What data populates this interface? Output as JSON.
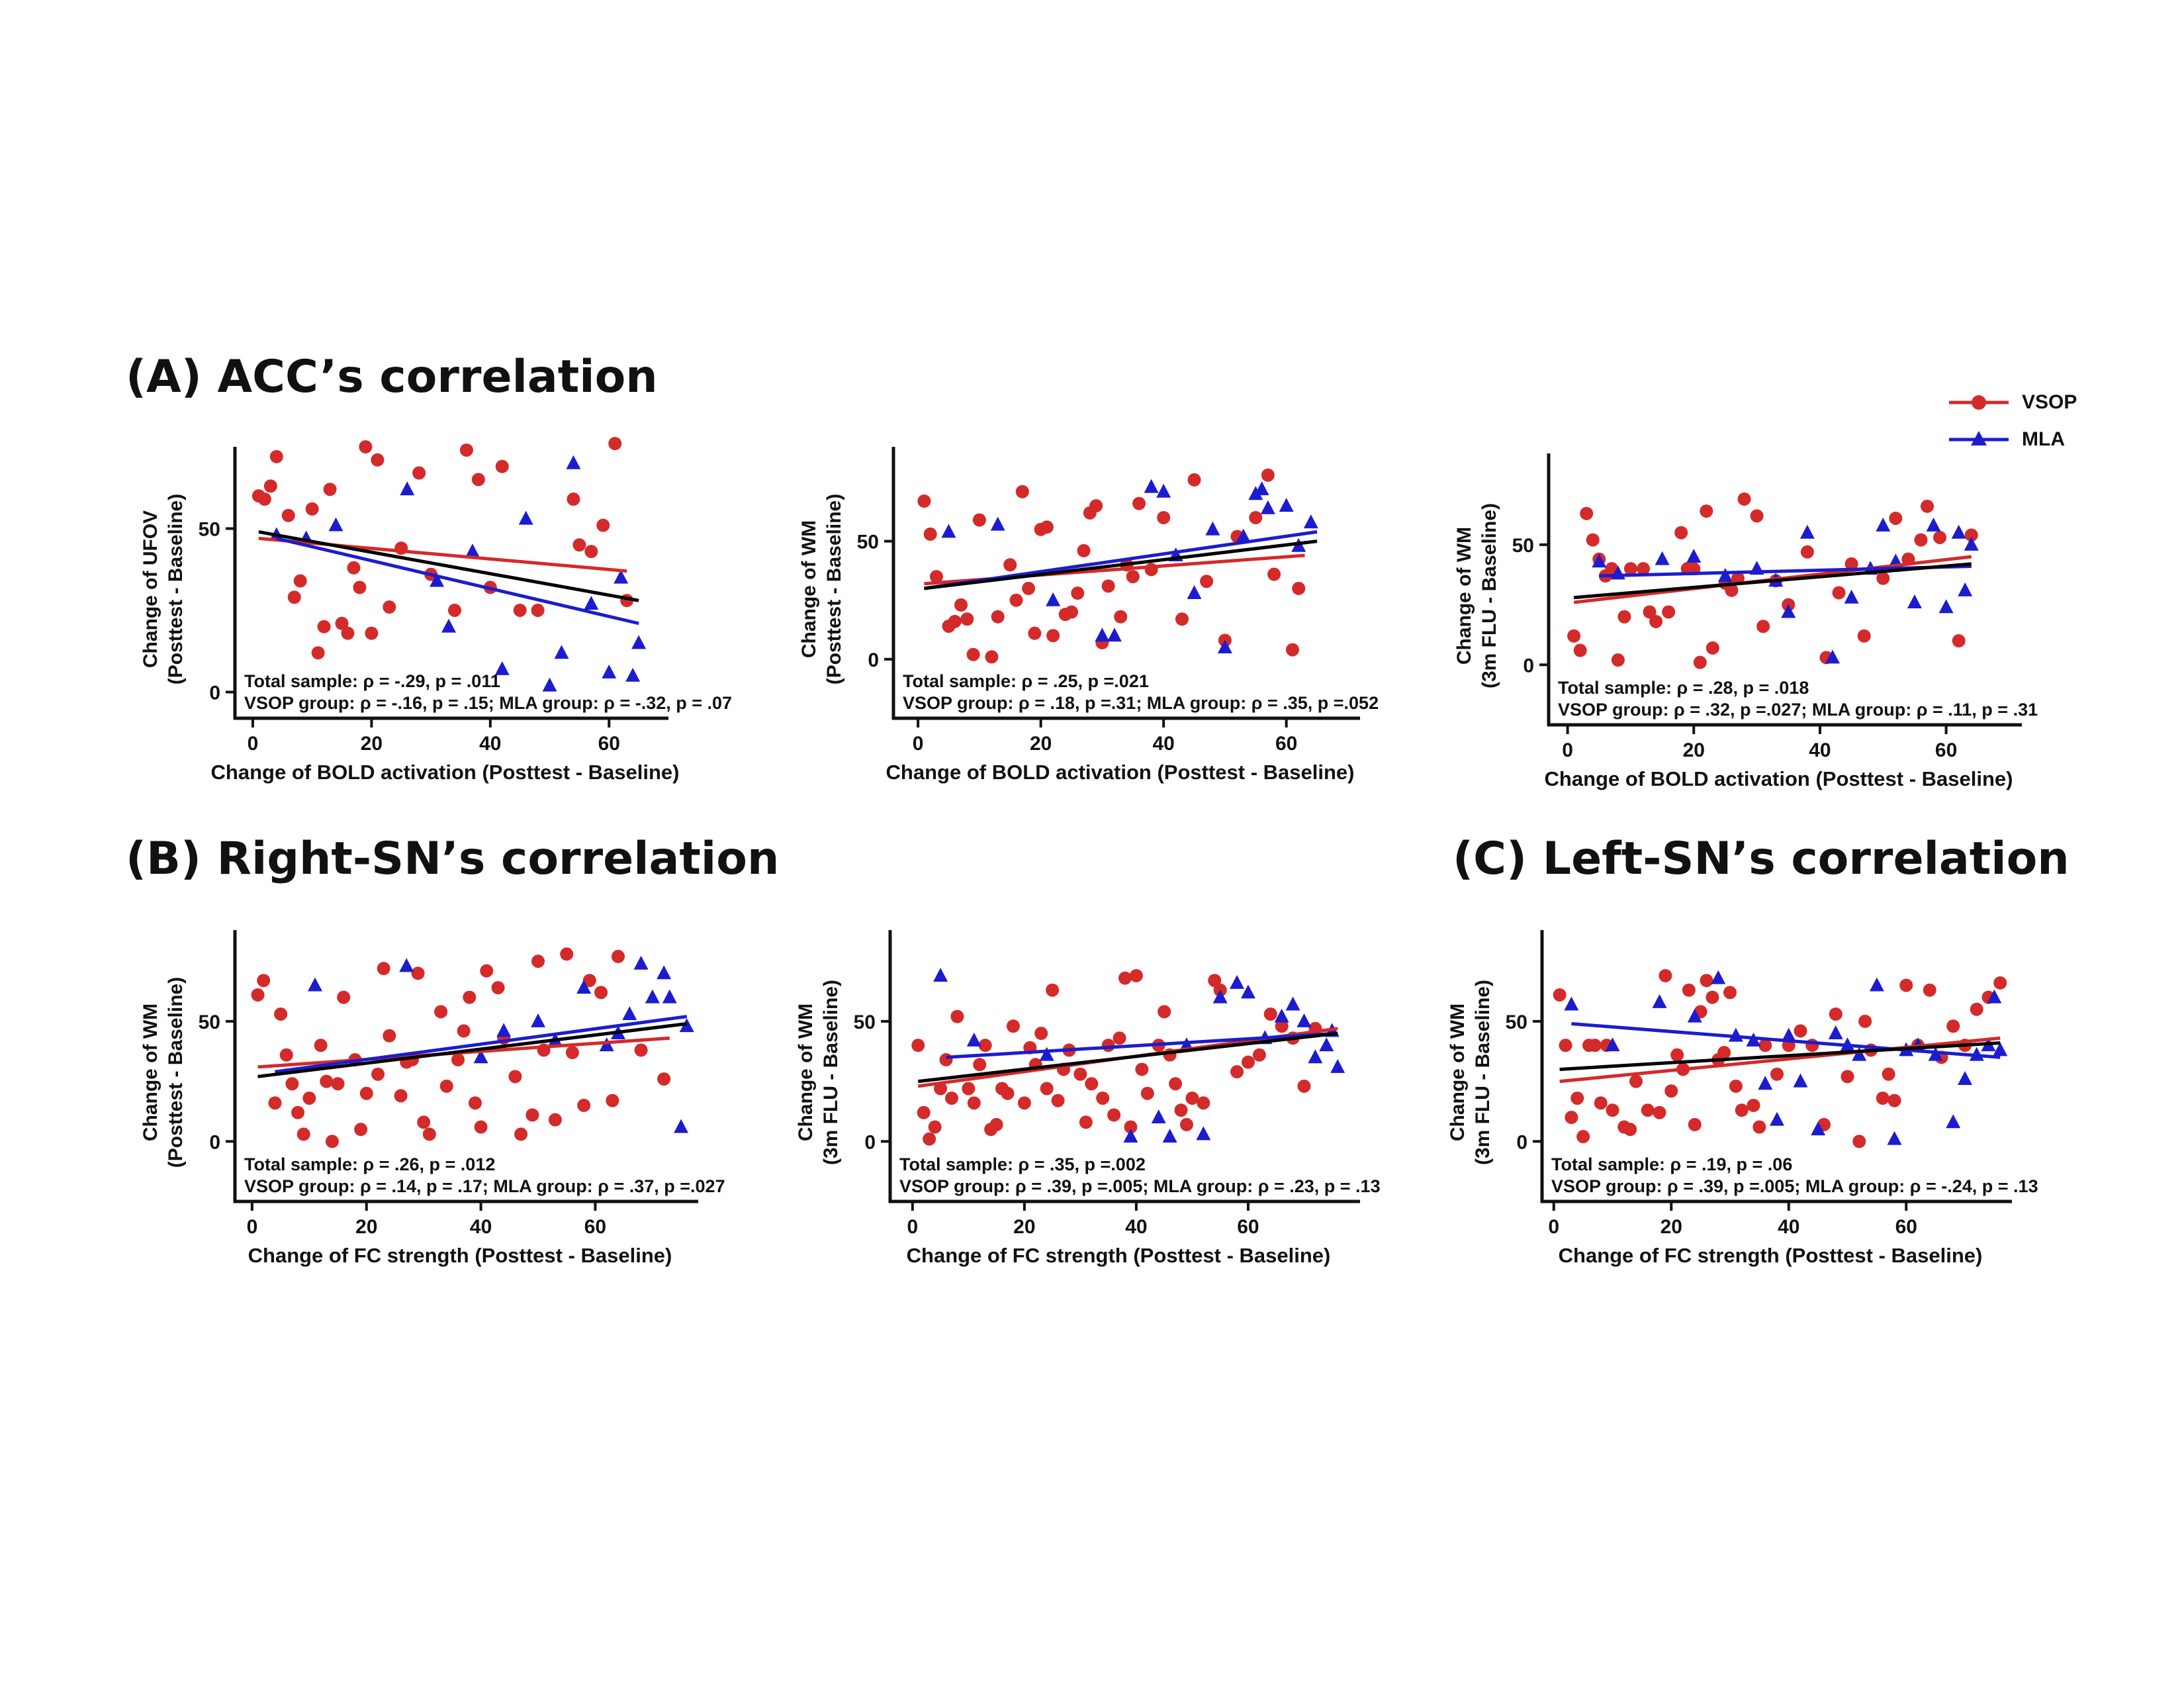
{
  "figure": {
    "titles": {
      "a": "(A) ACC’s correlation",
      "b": "(B) Right-SN’s correlation",
      "c": "(C) Left-SN’s correlation"
    },
    "legend": [
      {
        "label": "VSOP",
        "color": "#d42a2a",
        "marker": "circle"
      },
      {
        "label": "MLA",
        "color": "#1c1ccf",
        "marker": "triangle"
      }
    ],
    "colors": {
      "vsop": "#d42a2a",
      "mla": "#1c1ccf",
      "total": "#000000",
      "axis": "#111111"
    }
  },
  "chart_data": [
    {
      "type": "scatter",
      "panel": "A1",
      "xlabel": "Change of BOLD activation (Posttest - Baseline)",
      "ylabel": [
        "Change of UFOV",
        "(Posttest - Baseline)"
      ],
      "xlim": [
        -3,
        70
      ],
      "ylim": [
        -8,
        75
      ],
      "xticks": [
        0,
        20,
        40,
        60
      ],
      "yticks": [
        0,
        50
      ],
      "stats": [
        "Total sample: ρ = -.29, p = .011",
        "VSOP group: ρ = -.16, p = .15; MLA group: ρ = -.32, p = .07"
      ],
      "vsop": {
        "x": [
          1,
          2,
          3,
          4,
          6,
          7,
          8,
          10,
          11,
          12,
          13,
          15,
          16,
          17,
          18,
          19,
          20,
          21,
          23,
          25,
          28,
          30,
          34,
          36,
          38,
          40,
          42,
          45,
          48,
          54,
          55,
          57,
          59,
          61,
          63
        ],
        "y": [
          60,
          59,
          63,
          72,
          54,
          29,
          34,
          56,
          12,
          20,
          62,
          21,
          18,
          38,
          32,
          75,
          18,
          71,
          26,
          44,
          67,
          36,
          25,
          74,
          65,
          32,
          69,
          25,
          25,
          59,
          45,
          43,
          51,
          76,
          28
        ]
      },
      "mla": {
        "x": [
          4,
          9,
          14,
          26,
          31,
          33,
          37,
          42,
          46,
          50,
          52,
          54,
          57,
          60,
          62,
          64,
          65
        ],
        "y": [
          48,
          47,
          51,
          62,
          34,
          20,
          43,
          7,
          53,
          2,
          12,
          70,
          27,
          6,
          35,
          5,
          15
        ]
      },
      "lines": {
        "vsop": [
          [
            1,
            47
          ],
          [
            63,
            37
          ]
        ],
        "mla": [
          [
            4,
            47
          ],
          [
            65,
            21
          ]
        ],
        "total": [
          [
            1,
            49
          ],
          [
            65,
            28
          ]
        ]
      }
    },
    {
      "type": "scatter",
      "panel": "A2",
      "xlabel": "Change of BOLD activation (Posttest - Baseline)",
      "ylabel": [
        "Change of WM",
        "(Posttest - Baseline)"
      ],
      "xlim": [
        -4,
        72
      ],
      "ylim": [
        -25,
        90
      ],
      "xticks": [
        0,
        20,
        40,
        60
      ],
      "yticks": [
        0,
        50
      ],
      "stats": [
        "Total sample: ρ = .25, p =.021",
        "VSOP group: ρ = .18, p =.31; MLA group: ρ = .35, p =.052"
      ],
      "vsop": {
        "x": [
          1,
          2,
          3,
          5,
          6,
          7,
          8,
          9,
          10,
          12,
          13,
          15,
          16,
          17,
          18,
          19,
          20,
          21,
          22,
          24,
          25,
          26,
          27,
          28,
          29,
          30,
          31,
          33,
          34,
          35,
          36,
          38,
          40,
          43,
          45,
          47,
          50,
          52,
          55,
          57,
          58,
          61,
          62
        ],
        "y": [
          67,
          53,
          35,
          14,
          16,
          23,
          17,
          2,
          59,
          1,
          18,
          40,
          25,
          71,
          30,
          11,
          55,
          56,
          10,
          19,
          20,
          28,
          46,
          62,
          65,
          7,
          31,
          18,
          40,
          35,
          66,
          38,
          60,
          17,
          76,
          33,
          8,
          52,
          60,
          78,
          36,
          4,
          30
        ]
      },
      "mla": {
        "x": [
          5,
          13,
          22,
          30,
          32,
          38,
          40,
          42,
          45,
          48,
          50,
          53,
          55,
          56,
          57,
          60,
          62,
          64
        ],
        "y": [
          54,
          57,
          25,
          10,
          10,
          73,
          71,
          44,
          28,
          55,
          5,
          52,
          70,
          72,
          64,
          65,
          48,
          58
        ]
      },
      "lines": {
        "vsop": [
          [
            1,
            32
          ],
          [
            63,
            44
          ]
        ],
        "mla": [
          [
            1,
            30
          ],
          [
            65,
            54
          ]
        ],
        "total": [
          [
            1,
            30
          ],
          [
            65,
            50
          ]
        ]
      }
    },
    {
      "type": "scatter",
      "panel": "A3",
      "xlabel": "Change of BOLD activation (Posttest - Baseline)",
      "ylabel": [
        "Change of WM",
        "(3m FLU - Baseline)"
      ],
      "xlim": [
        -3,
        72
      ],
      "ylim": [
        -25,
        88
      ],
      "xticks": [
        0,
        20,
        40,
        60
      ],
      "yticks": [
        0,
        50
      ],
      "stats": [
        "Total sample: ρ = .28, p = .018",
        "VSOP group: ρ = .32, p =.027; MLA group: ρ = .11, p = .31"
      ],
      "vsop": {
        "x": [
          1,
          2,
          3,
          4,
          5,
          6,
          7,
          8,
          9,
          10,
          12,
          13,
          14,
          16,
          18,
          19,
          20,
          21,
          22,
          23,
          25,
          26,
          27,
          28,
          30,
          31,
          33,
          35,
          38,
          41,
          43,
          45,
          47,
          50,
          52,
          54,
          56,
          57,
          59,
          62,
          64
        ],
        "y": [
          12,
          6,
          63,
          52,
          44,
          37,
          40,
          2,
          20,
          40,
          40,
          22,
          18,
          22,
          55,
          40,
          40,
          1,
          64,
          7,
          34,
          31,
          36,
          69,
          62,
          16,
          35,
          25,
          47,
          3,
          30,
          42,
          12,
          36,
          61,
          44,
          52,
          66,
          53,
          10,
          54
        ]
      },
      "mla": {
        "x": [
          5,
          8,
          15,
          20,
          25,
          30,
          33,
          35,
          38,
          42,
          45,
          48,
          50,
          52,
          55,
          58,
          60,
          62,
          63,
          64
        ],
        "y": [
          43,
          38,
          44,
          45,
          37,
          40,
          35,
          22,
          55,
          3,
          28,
          40,
          58,
          43,
          26,
          58,
          24,
          55,
          31,
          50
        ]
      },
      "lines": {
        "vsop": [
          [
            1,
            26
          ],
          [
            64,
            45
          ]
        ],
        "mla": [
          [
            5,
            37
          ],
          [
            64,
            41
          ]
        ],
        "total": [
          [
            1,
            28
          ],
          [
            64,
            42
          ]
        ]
      }
    },
    {
      "type": "scatter",
      "panel": "B1",
      "xlabel": "Change of FC strength (Posttest - Baseline)",
      "ylabel": [
        "Change of WM",
        "(Posttest - Baseline)"
      ],
      "xlim": [
        -3,
        78
      ],
      "ylim": [
        -25,
        88
      ],
      "xticks": [
        0,
        20,
        40,
        60
      ],
      "yticks": [
        0,
        50
      ],
      "stats": [
        "Total sample: ρ = .26, p = .012",
        "VSOP group: ρ = .14, p = .17; MLA group: ρ = .37, p =.027"
      ],
      "vsop": {
        "x": [
          1,
          2,
          4,
          5,
          6,
          7,
          8,
          9,
          10,
          12,
          13,
          14,
          15,
          16,
          18,
          19,
          20,
          22,
          23,
          24,
          26,
          27,
          28,
          29,
          30,
          31,
          33,
          34,
          36,
          37,
          38,
          39,
          40,
          41,
          43,
          44,
          46,
          47,
          49,
          50,
          51,
          53,
          55,
          56,
          58,
          59,
          61,
          63,
          64,
          68,
          72
        ],
        "y": [
          61,
          67,
          16,
          53,
          36,
          24,
          12,
          3,
          18,
          40,
          25,
          0,
          24,
          60,
          34,
          5,
          20,
          28,
          72,
          44,
          19,
          33,
          34,
          70,
          8,
          3,
          54,
          23,
          34,
          46,
          60,
          16,
          6,
          71,
          64,
          43,
          27,
          3,
          11,
          75,
          38,
          9,
          78,
          37,
          15,
          67,
          62,
          17,
          77,
          38,
          26
        ]
      },
      "mla": {
        "x": [
          11,
          27,
          40,
          44,
          50,
          53,
          58,
          62,
          64,
          66,
          68,
          70,
          72,
          73,
          75,
          76
        ],
        "y": [
          65,
          73,
          35,
          46,
          50,
          42,
          64,
          40,
          45,
          53,
          74,
          60,
          70,
          60,
          6,
          48
        ]
      },
      "lines": {
        "vsop": [
          [
            1,
            31
          ],
          [
            73,
            43
          ]
        ],
        "mla": [
          [
            4,
            29
          ],
          [
            76,
            52
          ]
        ],
        "total": [
          [
            1,
            27
          ],
          [
            76,
            49
          ]
        ]
      }
    },
    {
      "type": "scatter",
      "panel": "B2",
      "xlabel": "Change of FC strength (Posttest - Baseline)",
      "ylabel": [
        "Change of WM",
        "(3m FLU - Baseline)"
      ],
      "xlim": [
        -4,
        80
      ],
      "ylim": [
        -25,
        88
      ],
      "xticks": [
        0,
        20,
        40,
        60
      ],
      "yticks": [
        0,
        50
      ],
      "stats": [
        "Total sample: ρ = .35, p =.002",
        "VSOP group: ρ = .39, p =.005; MLA group: ρ = .23, p = .13"
      ],
      "vsop": {
        "x": [
          1,
          2,
          3,
          4,
          5,
          6,
          7,
          8,
          10,
          11,
          12,
          13,
          14,
          15,
          16,
          17,
          18,
          20,
          21,
          22,
          23,
          24,
          25,
          26,
          27,
          28,
          30,
          31,
          32,
          34,
          35,
          36,
          37,
          38,
          39,
          40,
          41,
          42,
          44,
          45,
          46,
          47,
          48,
          49,
          50,
          52,
          54,
          55,
          58,
          60,
          62,
          64,
          66,
          68,
          70,
          72
        ],
        "y": [
          40,
          12,
          1,
          6,
          22,
          34,
          18,
          52,
          22,
          16,
          32,
          40,
          5,
          7,
          22,
          20,
          48,
          16,
          39,
          32,
          45,
          22,
          63,
          17,
          30,
          38,
          28,
          8,
          24,
          18,
          40,
          11,
          43,
          68,
          6,
          69,
          30,
          20,
          40,
          54,
          36,
          24,
          13,
          7,
          18,
          16,
          67,
          63,
          29,
          33,
          36,
          53,
          48,
          43,
          23,
          47
        ]
      },
      "mla": {
        "x": [
          5,
          11,
          24,
          39,
          44,
          46,
          49,
          52,
          55,
          58,
          60,
          63,
          66,
          68,
          70,
          72,
          74,
          75,
          76
        ],
        "y": [
          69,
          42,
          36,
          2,
          10,
          2,
          40,
          3,
          60,
          66,
          62,
          43,
          52,
          57,
          50,
          35,
          40,
          46,
          31
        ]
      },
      "lines": {
        "vsop": [
          [
            1,
            23
          ],
          [
            76,
            47
          ]
        ],
        "mla": [
          [
            6,
            35
          ],
          [
            76,
            45
          ]
        ],
        "total": [
          [
            1,
            25
          ],
          [
            76,
            45
          ]
        ]
      }
    },
    {
      "type": "scatter",
      "panel": "C",
      "xlabel": "Change of FC strength (Posttest - Baseline)",
      "ylabel": [
        "Change of WM",
        "(3m FLU - Baseline)"
      ],
      "xlim": [
        -2,
        78
      ],
      "ylim": [
        -25,
        88
      ],
      "xticks": [
        0,
        20,
        40,
        60
      ],
      "yticks": [
        0,
        50
      ],
      "stats": [
        "Total sample: ρ = .19, p = .06",
        "VSOP group: ρ = .39, p =.005; MLA group: ρ = -.24, p = .13"
      ],
      "vsop": {
        "x": [
          1,
          2,
          3,
          4,
          5,
          6,
          7,
          8,
          9,
          10,
          12,
          13,
          14,
          16,
          18,
          19,
          20,
          21,
          22,
          23,
          24,
          25,
          26,
          27,
          28,
          29,
          30,
          31,
          32,
          34,
          35,
          36,
          38,
          40,
          42,
          44,
          46,
          48,
          50,
          52,
          53,
          54,
          56,
          57,
          58,
          60,
          62,
          64,
          66,
          68,
          70,
          72,
          74,
          76
        ],
        "y": [
          61,
          40,
          10,
          18,
          2,
          40,
          40,
          16,
          40,
          13,
          6,
          5,
          25,
          13,
          12,
          69,
          21,
          36,
          30,
          63,
          7,
          54,
          67,
          60,
          34,
          37,
          62,
          23,
          13,
          15,
          6,
          40,
          28,
          40,
          46,
          40,
          7,
          53,
          27,
          0,
          50,
          38,
          18,
          28,
          17,
          65,
          40,
          63,
          35,
          48,
          40,
          55,
          60,
          66
        ]
      },
      "mla": {
        "x": [
          3,
          10,
          18,
          24,
          28,
          31,
          34,
          36,
          38,
          40,
          42,
          45,
          48,
          50,
          52,
          55,
          58,
          60,
          62,
          65,
          68,
          70,
          72,
          74,
          75,
          76
        ],
        "y": [
          57,
          40,
          58,
          52,
          68,
          44,
          42,
          24,
          9,
          44,
          25,
          5,
          45,
          40,
          36,
          65,
          1,
          38,
          40,
          36,
          8,
          26,
          36,
          40,
          60,
          38
        ]
      },
      "lines": {
        "vsop": [
          [
            1,
            25
          ],
          [
            76,
            43
          ]
        ],
        "mla": [
          [
            3,
            49
          ],
          [
            76,
            35
          ]
        ],
        "total": [
          [
            1,
            30
          ],
          [
            76,
            41
          ]
        ]
      }
    }
  ]
}
